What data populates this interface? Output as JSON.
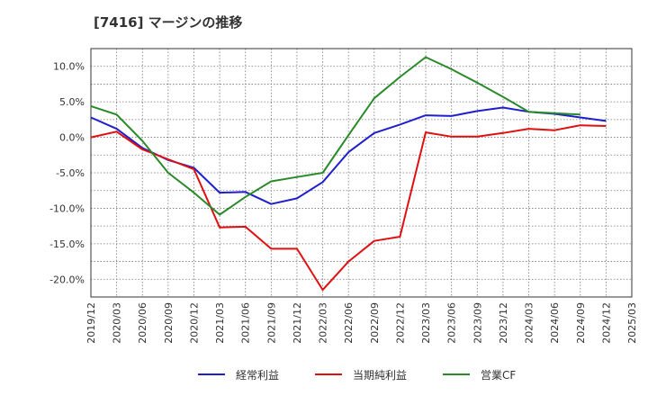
{
  "chart_data": {
    "type": "line",
    "title": "[7416]  マージンの推移",
    "xlabel": "",
    "ylabel": "",
    "ylim": [
      -22.5,
      12.5
    ],
    "grid": true,
    "legend_position": "bottom",
    "y_ticks": [
      {
        "value": 10,
        "label": "10.0%"
      },
      {
        "value": 5,
        "label": "5.0%"
      },
      {
        "value": 0,
        "label": "0.0%"
      },
      {
        "value": -5,
        "label": "-5.0%"
      },
      {
        "value": -10,
        "label": "-10.0%"
      },
      {
        "value": -15,
        "label": "-15.0%"
      },
      {
        "value": -20,
        "label": "-20.0%"
      }
    ],
    "categories": [
      "2019/12",
      "2020/03",
      "2020/06",
      "2020/09",
      "2020/12",
      "2021/03",
      "2021/06",
      "2021/09",
      "2021/12",
      "2022/03",
      "2022/06",
      "2022/09",
      "2022/12",
      "2023/03",
      "2023/06",
      "2023/09",
      "2023/12",
      "2024/03",
      "2024/06",
      "2024/09",
      "2024/12",
      "2025/03"
    ],
    "series": [
      {
        "name": "経常利益",
        "color": "#1f1fcc",
        "values": [
          2.8,
          1.2,
          -1.5,
          -3.2,
          -4.3,
          -7.8,
          -7.7,
          -9.4,
          -8.6,
          -6.3,
          -2.1,
          0.6,
          1.8,
          3.1,
          3.0,
          3.7,
          4.2,
          3.6,
          3.3,
          2.8,
          2.3,
          null
        ]
      },
      {
        "name": "当期純利益",
        "color": "#e01010",
        "values": [
          0.0,
          0.8,
          -1.7,
          -3.1,
          -4.5,
          -12.7,
          -12.6,
          -15.7,
          -15.7,
          -21.5,
          -17.5,
          -14.6,
          -14.0,
          0.7,
          0.1,
          0.1,
          0.6,
          1.2,
          1.0,
          1.7,
          1.6,
          null
        ]
      },
      {
        "name": "営業CF",
        "color": "#2a8a2a",
        "values": [
          4.4,
          3.2,
          -0.5,
          -5.0,
          -7.8,
          -10.9,
          -8.4,
          -6.2,
          -5.6,
          -5.0,
          0.3,
          5.5,
          8.5,
          11.3,
          9.6,
          7.7,
          5.7,
          3.6,
          3.4,
          3.2,
          null,
          null
        ]
      }
    ]
  }
}
